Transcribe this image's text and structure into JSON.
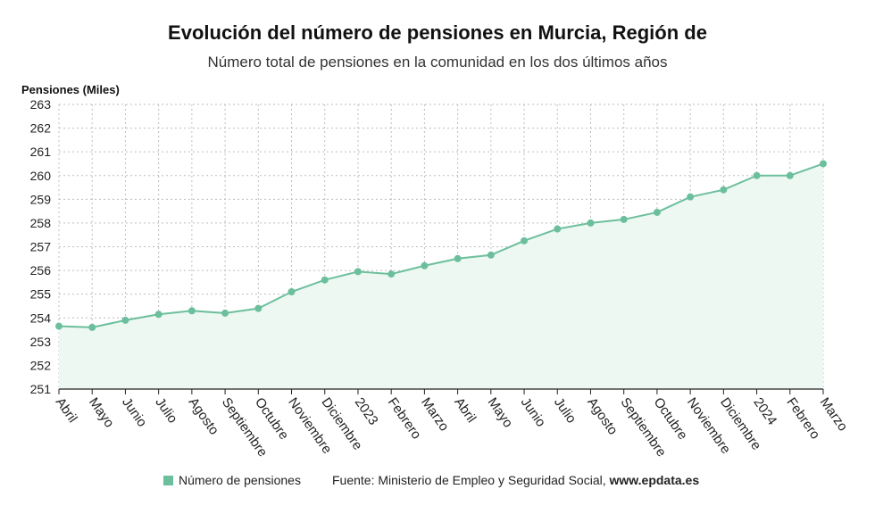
{
  "title": "Evolución del número de pensiones en Murcia, Región de",
  "subtitle": "Número total de pensiones en la comunidad en los dos últimos años",
  "legend": {
    "label": "Número de pensiones"
  },
  "source": {
    "prefix": "Fuente: Ministerio de Empleo y Seguridad Social, ",
    "site": "www.epdata.es"
  },
  "colors": {
    "line": "#6cbf9c",
    "fill": "#eef8f3",
    "grid": "#bdbdbd",
    "axis": "#222222"
  },
  "chart_data": {
    "type": "area",
    "ylabel": "Pensiones (Miles)",
    "ylim": [
      251,
      263
    ],
    "yticks": [
      251,
      252,
      253,
      254,
      255,
      256,
      257,
      258,
      259,
      260,
      261,
      262,
      263
    ],
    "grid": true,
    "categories": [
      "Abril",
      "Mayo",
      "Junio",
      "Julio",
      "Agosto",
      "Septiembre",
      "Octubre",
      "Noviembre",
      "Diciembre",
      "2023",
      "Febrero",
      "Marzo",
      "Abril",
      "Mayo",
      "Junio",
      "Julio",
      "Agosto",
      "Septiembre",
      "Octubre",
      "Noviembre",
      "Diciembre",
      "2024",
      "Febrero",
      "Marzo"
    ],
    "series": [
      {
        "name": "Número de pensiones",
        "values": [
          253.65,
          253.6,
          253.9,
          254.15,
          254.3,
          254.2,
          254.4,
          255.1,
          255.6,
          255.95,
          255.85,
          256.2,
          256.5,
          256.65,
          257.25,
          257.75,
          258.0,
          258.15,
          258.45,
          259.1,
          259.4,
          260.0,
          260.0,
          260.5
        ]
      }
    ]
  }
}
